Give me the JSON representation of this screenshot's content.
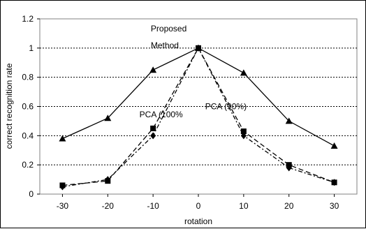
{
  "chart_data": {
    "type": "line",
    "xlabel": "rotation",
    "ylabel": "correct recognition rate",
    "x": [
      -30,
      -20,
      -10,
      0,
      10,
      20,
      30
    ],
    "xlim": [
      -35,
      35
    ],
    "ylim": [
      0,
      1.2
    ],
    "x_ticks": [
      "-30",
      "-20",
      "-10",
      "0",
      "10",
      "20",
      "30"
    ],
    "y_ticks": [
      "0",
      "0.2",
      "0.4",
      "0.6",
      "0.8",
      "1",
      "1.2"
    ],
    "grid": "horizontal dashed",
    "series": [
      {
        "name": "Proposed Method",
        "values": [
          0.38,
          0.52,
          0.85,
          1.0,
          0.83,
          0.5,
          0.33
        ],
        "marker": "triangle",
        "style": "solid",
        "color": "#000000"
      },
      {
        "name": "PCA (100%)",
        "values": [
          0.06,
          0.09,
          0.45,
          1.0,
          0.43,
          0.2,
          0.08
        ],
        "marker": "square",
        "style": "dashed",
        "color": "#000000"
      },
      {
        "name": "PCA (90%)",
        "values": [
          0.05,
          0.1,
          0.4,
          1.0,
          0.4,
          0.18,
          0.08
        ],
        "marker": "diamond",
        "style": "dash-dot",
        "color": "#000000"
      }
    ],
    "annotations": [
      {
        "text": "Proposed",
        "x": -10.5,
        "y": 1.115
      },
      {
        "text": "Method",
        "x": -10.5,
        "y": 1.0
      },
      {
        "text": "PCA (100%",
        "x": -13.0,
        "y": 0.525
      },
      {
        "text": "PCA (90%)",
        "x": 1.5,
        "y": 0.58
      }
    ]
  }
}
